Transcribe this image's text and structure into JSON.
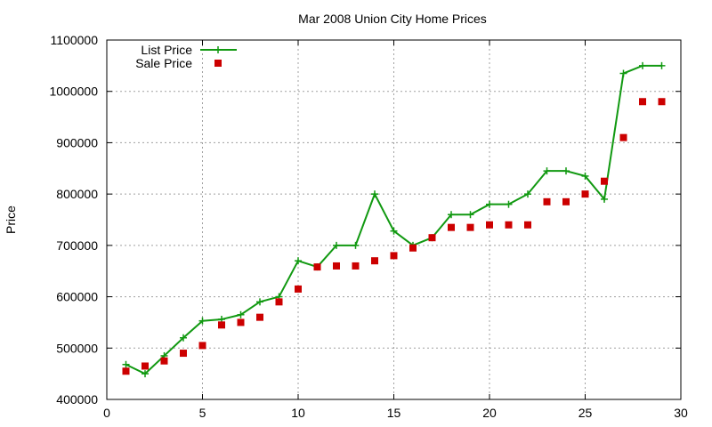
{
  "chart_data": {
    "type": "line",
    "title": "Mar 2008 Union City Home Prices",
    "xlabel": "",
    "ylabel": "Price",
    "xlim": [
      0,
      30
    ],
    "ylim": [
      400000,
      1100000
    ],
    "xticks": [
      0,
      5,
      10,
      15,
      20,
      25,
      30
    ],
    "yticks": [
      400000,
      500000,
      600000,
      700000,
      800000,
      900000,
      1000000,
      1100000
    ],
    "grid": true,
    "legend_position": "top-left",
    "x": [
      1,
      2,
      3,
      4,
      5,
      6,
      7,
      8,
      9,
      10,
      11,
      12,
      13,
      14,
      15,
      16,
      17,
      18,
      19,
      20,
      21,
      22,
      23,
      24,
      25,
      26,
      27,
      28,
      29
    ],
    "series": [
      {
        "name": "List Price",
        "style": "line+cross",
        "color": "#119911",
        "values": [
          468000,
          450000,
          485000,
          520000,
          553000,
          556000,
          565000,
          590000,
          600000,
          670000,
          658000,
          700000,
          700000,
          800000,
          728000,
          700000,
          715000,
          760000,
          760000,
          780000,
          780000,
          800000,
          845000,
          845000,
          835000,
          790000,
          1035000,
          1050000,
          1050000
        ]
      },
      {
        "name": "Sale Price",
        "style": "square-markers",
        "color": "#cc0000",
        "values": [
          455000,
          465000,
          475000,
          490000,
          505000,
          545000,
          550000,
          560000,
          590000,
          615000,
          658000,
          660000,
          660000,
          670000,
          680000,
          695000,
          715000,
          735000,
          735000,
          740000,
          740000,
          740000,
          785000,
          785000,
          800000,
          825000,
          910000,
          980000,
          980000
        ]
      }
    ]
  }
}
